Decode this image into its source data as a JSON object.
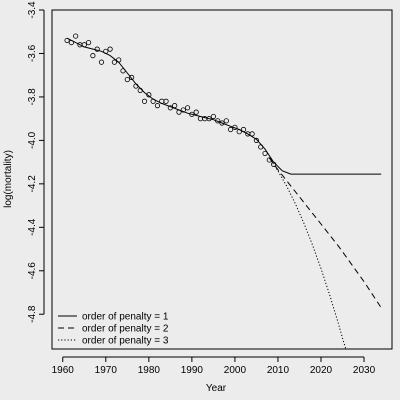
{
  "chart_data": {
    "type": "line",
    "title": "",
    "xlabel": "Year",
    "ylabel": "log(mortality)",
    "xlim": [
      1957.5,
      2036.5
    ],
    "ylim": [
      -4.96,
      -3.4
    ],
    "xticks": [
      1960,
      1970,
      1980,
      1990,
      2000,
      2010,
      2020,
      2030
    ],
    "yticks": [
      -3.4,
      -3.6,
      -3.8,
      -4.0,
      -4.2,
      -4.4,
      -4.6,
      -4.8
    ],
    "grid": false,
    "legend_position": "bottom-left",
    "observed": {
      "x": [
        1961,
        1962,
        1963,
        1964,
        1965,
        1966,
        1967,
        1968,
        1969,
        1970,
        1971,
        1972,
        1973,
        1974,
        1975,
        1976,
        1977,
        1978,
        1979,
        1980,
        1981,
        1982,
        1983,
        1984,
        1985,
        1986,
        1987,
        1988,
        1989,
        1990,
        1991,
        1992,
        1993,
        1994,
        1995,
        1996,
        1997,
        1998,
        1999,
        2000,
        2001,
        2002,
        2003,
        2004,
        2005,
        2006,
        2007,
        2008,
        2009
      ],
      "y": [
        -3.54,
        -3.55,
        -3.52,
        -3.56,
        -3.56,
        -3.55,
        -3.61,
        -3.58,
        -3.64,
        -3.59,
        -3.58,
        -3.64,
        -3.63,
        -3.68,
        -3.72,
        -3.71,
        -3.75,
        -3.77,
        -3.82,
        -3.79,
        -3.82,
        -3.84,
        -3.82,
        -3.82,
        -3.85,
        -3.84,
        -3.87,
        -3.86,
        -3.85,
        -3.88,
        -3.87,
        -3.9,
        -3.9,
        -3.9,
        -3.89,
        -3.91,
        -3.92,
        -3.91,
        -3.95,
        -3.94,
        -3.96,
        -3.95,
        -3.97,
        -3.97,
        -4.0,
        -4.03,
        -4.06,
        -4.09,
        -4.11
      ]
    },
    "series": [
      {
        "name": "order of penalty = 1",
        "dash": "solid",
        "x": [
          1961,
          1963,
          1965,
          1967,
          1969,
          1971,
          1973,
          1975,
          1977,
          1979,
          1981,
          1983,
          1985,
          1987,
          1989,
          1991,
          1993,
          1995,
          1997,
          1999,
          2001,
          2003,
          2005,
          2007,
          2009,
          2011,
          2013,
          2015,
          2020,
          2025,
          2030,
          2034
        ],
        "y": [
          -3.53,
          -3.55,
          -3.57,
          -3.58,
          -3.59,
          -3.61,
          -3.64,
          -3.69,
          -3.74,
          -3.78,
          -3.81,
          -3.83,
          -3.845,
          -3.86,
          -3.875,
          -3.885,
          -3.895,
          -3.905,
          -3.92,
          -3.935,
          -3.95,
          -3.97,
          -3.995,
          -4.04,
          -4.1,
          -4.14,
          -4.155,
          -4.155,
          -4.155,
          -4.155,
          -4.155,
          -4.155
        ]
      },
      {
        "name": "order of penalty = 2",
        "dash": "dashed",
        "x": [
          2008,
          2010,
          2012,
          2014,
          2016,
          2018,
          2020,
          2022,
          2024,
          2026,
          2028,
          2030,
          2032,
          2034
        ],
        "y": [
          -4.08,
          -4.135,
          -4.185,
          -4.235,
          -4.285,
          -4.335,
          -4.385,
          -4.435,
          -4.485,
          -4.54,
          -4.595,
          -4.65,
          -4.71,
          -4.77
        ]
      },
      {
        "name": "order of penalty = 3",
        "dash": "dotted",
        "x": [
          2008,
          2010,
          2012,
          2014,
          2016,
          2018,
          2020,
          2022,
          2024,
          2025,
          2026
        ],
        "y": [
          -4.08,
          -4.14,
          -4.21,
          -4.29,
          -4.38,
          -4.48,
          -4.59,
          -4.71,
          -4.84,
          -4.91,
          -4.975
        ]
      }
    ]
  }
}
